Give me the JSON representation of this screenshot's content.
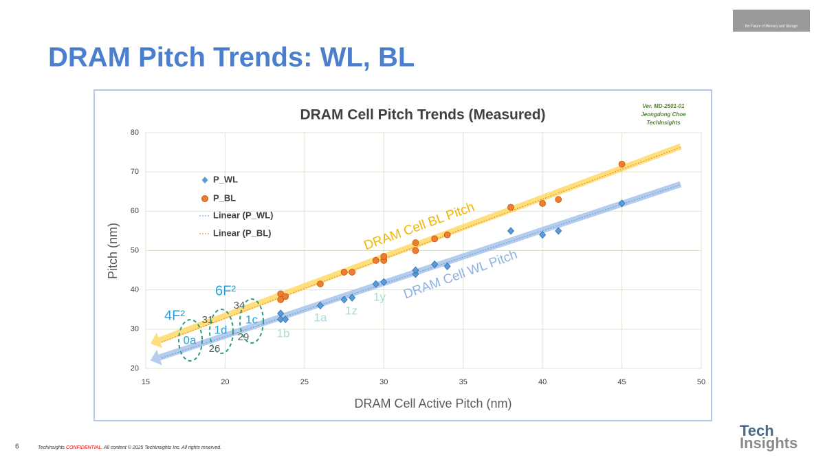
{
  "slide": {
    "title": "DRAM Pitch Trends: WL, BL",
    "page_number": "6",
    "footer": [
      "TechInsights ",
      "CONFIDENTIAL",
      ". All content © 2025 TechInsights Inc. All rights reserved."
    ],
    "logo": [
      "Tech",
      "Insights"
    ],
    "top_logo": "the Future of Memory and Storage"
  },
  "chart_data": {
    "type": "scatter",
    "title": "DRAM Cell Pitch Trends (Measured)",
    "version_note": [
      "Ver. MD-2501-01",
      "Jeongdong Choe",
      "TechInsights"
    ],
    "x_label": "DRAM Cell Active Pitch (nm)",
    "y_label": "Pitch (nm)",
    "xlim": [
      15,
      50
    ],
    "xticks": [
      15,
      20,
      25,
      30,
      35,
      40,
      45,
      50
    ],
    "ylim": [
      20,
      80
    ],
    "yticks": [
      20,
      30,
      40,
      50,
      60,
      70,
      80
    ],
    "grid": true,
    "series": [
      {
        "name": "P_WL",
        "color": "#5b9bd5",
        "marker": "diamond",
        "x": [
          23.5,
          23.5,
          23.8,
          26,
          27.5,
          28,
          29.5,
          30,
          32,
          32,
          33.2,
          34,
          38,
          40,
          41,
          45
        ],
        "values": [
          34,
          32.5,
          32.5,
          36,
          37.5,
          38,
          41.5,
          42,
          44,
          45,
          46.5,
          46,
          55,
          54,
          55,
          62
        ]
      },
      {
        "name": "P_BL",
        "color": "#ed7d31",
        "marker": "circle",
        "x": [
          23.5,
          23.5,
          23.8,
          26,
          27.5,
          28,
          29.5,
          30,
          30,
          32,
          32,
          33.2,
          34,
          38,
          40,
          41,
          45
        ],
        "values": [
          39,
          37.5,
          38.3,
          41.5,
          44.5,
          44.5,
          47.5,
          47.5,
          48.5,
          50,
          52,
          53,
          54,
          61,
          62,
          63,
          72
        ]
      }
    ],
    "trendlines": [
      {
        "name": "Linear (P_WL)",
        "color": "#5b9bd5"
      },
      {
        "name": "Linear (P_BL)",
        "color": "#ed7d31"
      }
    ],
    "trend_arrows": [
      {
        "label": "DRAM Cell BL Pitch",
        "color": "#ffd966"
      },
      {
        "label": "DRAM Cell WL Pitch",
        "color": "#a9c4eb"
      }
    ],
    "annotations": [
      "4F²",
      "6F²",
      "0a",
      "1d",
      "1c",
      "1b",
      "1a",
      "1z",
      "1y",
      "31",
      "34",
      "29",
      "26"
    ]
  }
}
